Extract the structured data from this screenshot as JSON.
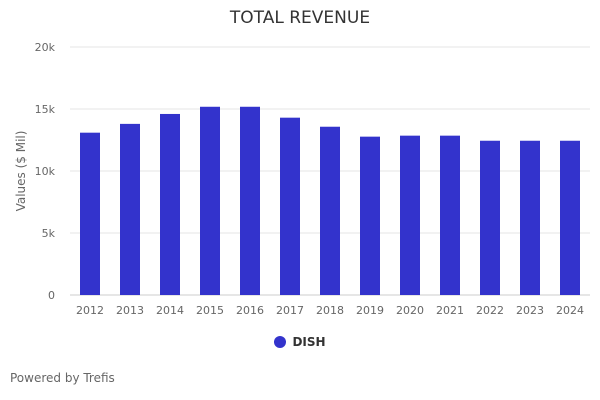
{
  "chart_data": {
    "type": "bar",
    "title": "TOTAL REVENUE",
    "xlabel": "",
    "ylabel": "Values ($ Mil)",
    "ylim": [
      0,
      20000
    ],
    "yticks": [
      0,
      5000,
      10000,
      15000,
      20000
    ],
    "ytick_labels": [
      "0",
      "5k",
      "10k",
      "15k",
      "20k"
    ],
    "grid": true,
    "legend_position": "bottom",
    "categories": [
      "2012",
      "2013",
      "2014",
      "2015",
      "2016",
      "2017",
      "2018",
      "2019",
      "2020",
      "2021",
      "2022",
      "2023",
      "2024"
    ],
    "series": [
      {
        "name": "DISH",
        "color": "#3333cc",
        "values": [
          13090,
          13800,
          14600,
          15180,
          15180,
          14300,
          13570,
          12770,
          12850,
          12850,
          12440,
          12440,
          12440
        ]
      }
    ]
  },
  "footer": {
    "credit": "Powered by Trefis"
  }
}
